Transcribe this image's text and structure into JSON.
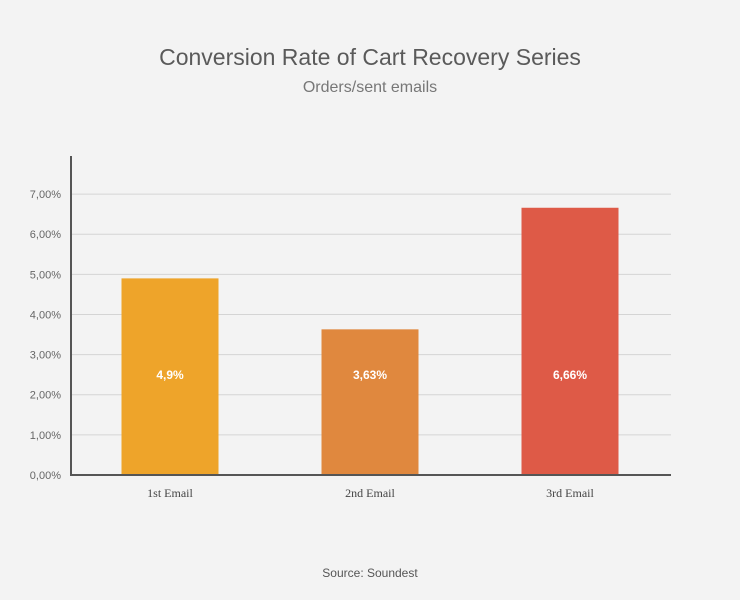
{
  "chart_data": {
    "type": "bar",
    "title": "Conversion Rate of Cart Recovery Series",
    "subtitle": "Orders/sent emails",
    "categories": [
      "1st Email",
      "2nd Email",
      "3rd Email"
    ],
    "values": [
      4.9,
      3.63,
      6.66
    ],
    "data_labels": [
      "4,9%",
      "3,63%",
      "6,66%"
    ],
    "colors": [
      "#eea42a",
      "#e0883e",
      "#de5a47"
    ],
    "ylim": [
      0,
      7.9
    ],
    "yticks": [
      0,
      1,
      2,
      3,
      4,
      5,
      6,
      7
    ],
    "ytick_labels": [
      "0,00%",
      "1,00%",
      "2,00%",
      "3,00%",
      "4,00%",
      "5,00%",
      "6,00%",
      "7,00%"
    ],
    "grid": true,
    "source": "Source: Soundest"
  }
}
